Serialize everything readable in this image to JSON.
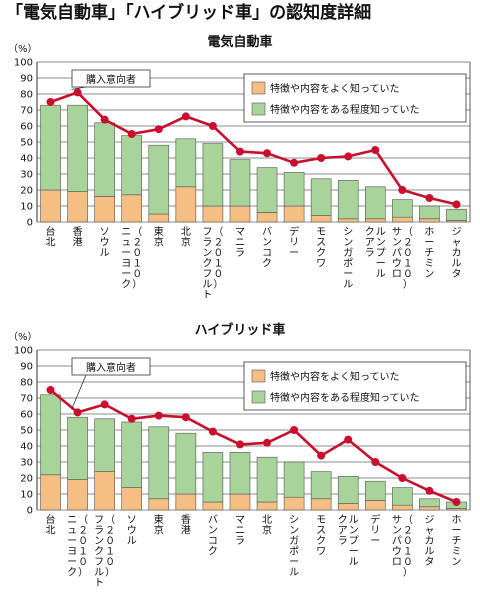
{
  "title": "「電気自動車」「ハイブリッド車」の認知度詳細",
  "colors": {
    "light_bar": "#f5be82",
    "green_bar": "#a8d39b",
    "line": "#c8102e",
    "grid": "#666666"
  },
  "chart_data": [
    {
      "type": "bar",
      "title": "電気自動車",
      "ylabel": "（%）",
      "ylim": [
        0,
        100
      ],
      "yticks": [
        "0",
        "10",
        "20",
        "30",
        "40",
        "50",
        "60",
        "70",
        "80",
        "90",
        "100"
      ],
      "grid": true,
      "legend_position": "top-right",
      "categories": [
        "台北",
        "香港",
        "ソウル",
        "ニューヨーク（2010）",
        "東京",
        "北京",
        "フランクフルト（2010）",
        "マニラ",
        "バンコク",
        "デリー",
        "モスクワ",
        "シンガポール",
        "クアラルンプール",
        "サンパウロ（2010）",
        "ホーチミン",
        "ジャカルタ"
      ],
      "category_lines": [
        [
          "台北"
        ],
        [
          "香港"
        ],
        [
          "ソウル"
        ],
        [
          "ニューヨーク",
          "（２０１０）"
        ],
        [
          "東京"
        ],
        [
          "北京"
        ],
        [
          "フランクフルト",
          "（２０１０）"
        ],
        [
          "マニラ"
        ],
        [
          "バンコク"
        ],
        [
          "デリー"
        ],
        [
          "モスクワ"
        ],
        [
          "シンガポール"
        ],
        [
          "クアラ",
          "ルンプール"
        ],
        [
          "サンパウロ",
          "（２０１０）"
        ],
        [
          "ホーチミン"
        ],
        [
          "ジャカルタ"
        ]
      ],
      "series": [
        {
          "name": "特徴や内容をよく知っていた",
          "kind": "bar",
          "values": [
            20,
            19,
            16,
            17,
            5,
            22,
            10,
            10,
            6,
            10,
            4,
            2,
            2,
            3,
            2,
            1
          ]
        },
        {
          "name": "特徴や内容をある程度知っていた",
          "kind": "bar",
          "values": [
            53,
            54,
            46,
            37,
            43,
            30,
            39,
            29,
            28,
            21,
            23,
            24,
            20,
            11,
            8,
            7
          ]
        },
        {
          "name": "購入意向者",
          "kind": "line",
          "values": [
            75,
            81,
            64,
            55,
            58,
            66,
            60,
            44,
            43,
            37,
            40,
            41,
            45,
            20,
            15,
            11
          ]
        }
      ],
      "annotation": "購入意向者"
    },
    {
      "type": "bar",
      "title": "ハイブリッド車",
      "ylabel": "（%）",
      "ylim": [
        0,
        100
      ],
      "yticks": [
        "0",
        "10",
        "20",
        "30",
        "40",
        "50",
        "60",
        "70",
        "80",
        "90",
        "100"
      ],
      "grid": true,
      "legend_position": "top-right",
      "categories": [
        "台北",
        "ニューヨーク（2010）",
        "フランクフルト（2010）",
        "ソウル",
        "東京",
        "香港",
        "バンコク",
        "マニラ",
        "北京",
        "シンガポール",
        "モスクワ",
        "クアラルンプール",
        "デリー",
        "サンパウロ（2010）",
        "ジャカルタ",
        "ホーチミン"
      ],
      "category_lines": [
        [
          "台北"
        ],
        [
          "ニューヨーク",
          "（２０１０）"
        ],
        [
          "フランクフルト",
          "（２０１０）"
        ],
        [
          "ソウル"
        ],
        [
          "東京"
        ],
        [
          "香港"
        ],
        [
          "バンコク"
        ],
        [
          "マニラ"
        ],
        [
          "北京"
        ],
        [
          "シンガポール"
        ],
        [
          "モスクワ"
        ],
        [
          "クアラ",
          "ルンプール"
        ],
        [
          "デリー"
        ],
        [
          "サンパウロ",
          "（２０１０）"
        ],
        [
          "ジャカルタ"
        ],
        [
          "ホーチミン"
        ]
      ],
      "series": [
        {
          "name": "特徴や内容をよく知っていた",
          "kind": "bar",
          "values": [
            22,
            19,
            24,
            14,
            7,
            10,
            5,
            10,
            5,
            8,
            7,
            4,
            6,
            3,
            2,
            1
          ]
        },
        {
          "name": "特徴や内容をある程度知っていた",
          "kind": "bar",
          "values": [
            50,
            39,
            33,
            41,
            45,
            38,
            31,
            26,
            28,
            22,
            17,
            17,
            12,
            11,
            5,
            4
          ]
        },
        {
          "name": "購入意向者",
          "kind": "line",
          "values": [
            75,
            61,
            66,
            57,
            59,
            58,
            49,
            41,
            42,
            50,
            34,
            44,
            30,
            20,
            12,
            5
          ]
        }
      ],
      "annotation": "購入意向者"
    }
  ]
}
